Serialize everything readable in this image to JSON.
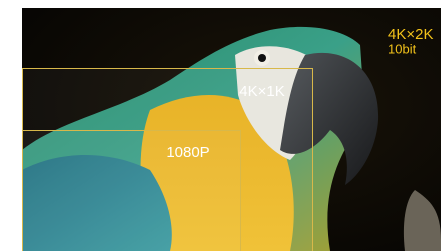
{
  "overlay": {
    "full_resolution": "4K×2K",
    "bit_depth": "10bit",
    "mid_resolution": "4K×1K",
    "small_resolution": "1080P"
  }
}
